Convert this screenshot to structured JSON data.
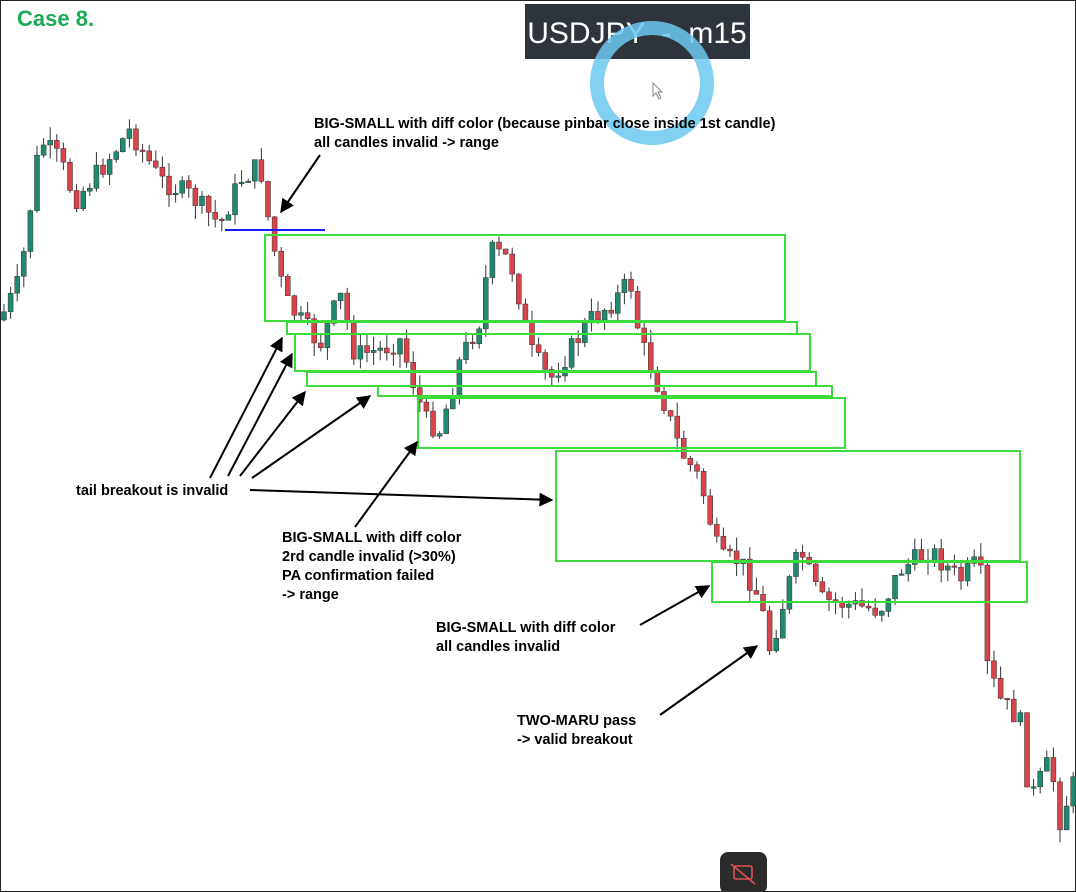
{
  "case_title": "Case 8.",
  "symbol_label": "USDJPY  -  m15",
  "annotations": [
    {
      "lines": [
        "BIG-SMALL with diff color (because pinbar close inside 1st candle)",
        "all candles invalid -> range"
      ]
    },
    {
      "lines": [
        "tail breakout is invalid"
      ]
    },
    {
      "lines": [
        "BIG-SMALL with diff color",
        "2rd candle invalid (>30%)",
        "PA confirmation failed",
        "-> range"
      ]
    },
    {
      "lines": [
        "BIG-SMALL with diff color",
        "all candles invalid"
      ]
    },
    {
      "lines": [
        "TWO-MARU pass",
        "-> valid breakout"
      ]
    }
  ]
}
